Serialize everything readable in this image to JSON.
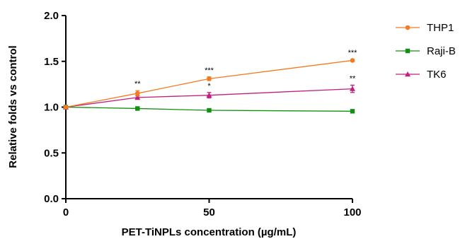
{
  "chart_data": {
    "type": "line",
    "xlabel": "PET-TiNPLs concentration (µg/mL)",
    "ylabel": "Relative folds vs control",
    "xlim": [
      0,
      100
    ],
    "ylim": [
      0.0,
      2.0
    ],
    "x_ticks": [
      "0",
      "50",
      "100"
    ],
    "y_ticks": [
      "0.0",
      "0.5",
      "1.0",
      "1.5",
      "2.0"
    ],
    "grid": false,
    "legend_position": "right",
    "x": [
      0,
      25,
      50,
      100
    ],
    "series": [
      {
        "name": "THP1",
        "color": "#f47b20",
        "marker": "circle",
        "values": [
          1.0,
          1.15,
          1.31,
          1.51
        ],
        "errors": [
          0.0,
          0.03,
          0.02,
          0.01
        ],
        "significance": [
          "",
          "**",
          "***",
          "***"
        ]
      },
      {
        "name": "Raji-B",
        "color": "#119011",
        "marker": "square",
        "values": [
          1.0,
          0.985,
          0.965,
          0.955
        ],
        "errors": [
          0.0,
          0.01,
          0.01,
          0.01
        ],
        "significance": [
          "",
          "",
          "",
          ""
        ]
      },
      {
        "name": "TK6",
        "color": "#c21f7c",
        "marker": "triangle",
        "values": [
          1.0,
          1.105,
          1.13,
          1.2
        ],
        "errors": [
          0.0,
          0.02,
          0.03,
          0.04
        ],
        "significance": [
          "",
          "",
          "*",
          "**"
        ]
      }
    ]
  }
}
